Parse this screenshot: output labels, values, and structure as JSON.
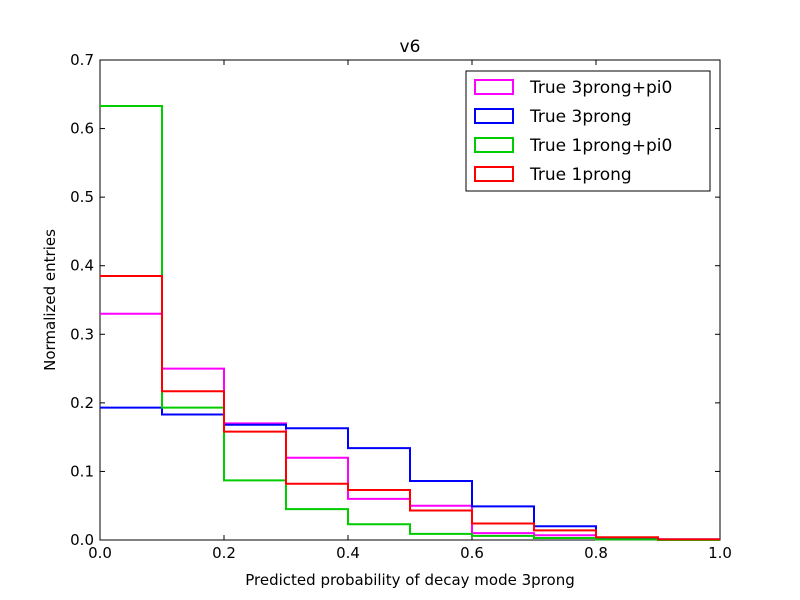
{
  "chart_data": {
    "type": "histogram-step",
    "title": "v6",
    "xlabel": "Predicted probability of decay mode 3prong",
    "ylabel": "Normalized entries",
    "xlim": [
      0.0,
      1.0
    ],
    "ylim": [
      0.0,
      0.7
    ],
    "xticks": [
      "0.0",
      "0.2",
      "0.4",
      "0.6",
      "0.8",
      "1.0"
    ],
    "yticks": [
      "0.0",
      "0.1",
      "0.2",
      "0.3",
      "0.4",
      "0.5",
      "0.6",
      "0.7"
    ],
    "bin_edges": [
      0.0,
      0.1,
      0.2,
      0.3,
      0.4,
      0.5,
      0.6,
      0.7,
      0.8,
      0.9,
      1.0
    ],
    "legend_position": "top-right",
    "series": [
      {
        "name": "True 3prong+pi0",
        "color": "#ff00ff",
        "values": [
          0.33,
          0.25,
          0.17,
          0.12,
          0.06,
          0.05,
          0.01,
          0.007,
          0.002,
          0.001
        ]
      },
      {
        "name": "True 3prong",
        "color": "#0000ff",
        "values": [
          0.193,
          0.183,
          0.168,
          0.163,
          0.134,
          0.086,
          0.049,
          0.02,
          0.003,
          0.001
        ]
      },
      {
        "name": "True 1prong+pi0",
        "color": "#00cc00",
        "values": [
          0.633,
          0.193,
          0.087,
          0.045,
          0.023,
          0.009,
          0.006,
          0.003,
          0.001,
          0.0
        ]
      },
      {
        "name": "True 1prong",
        "color": "#ff0000",
        "values": [
          0.385,
          0.217,
          0.158,
          0.082,
          0.073,
          0.043,
          0.024,
          0.014,
          0.004,
          0.001
        ]
      }
    ]
  }
}
